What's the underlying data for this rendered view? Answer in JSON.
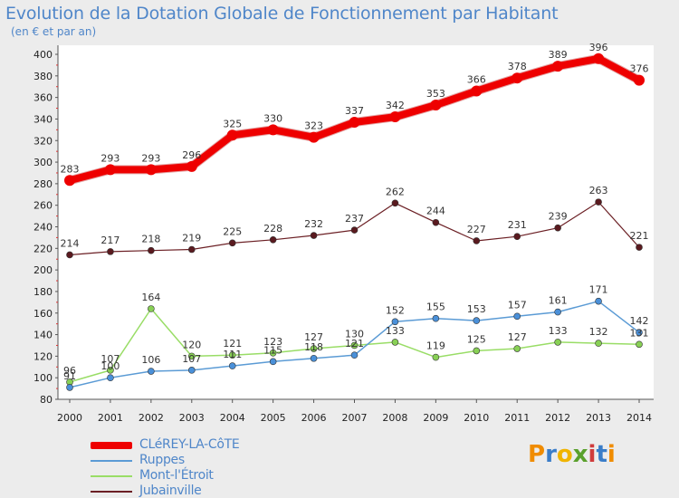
{
  "chart_data": {
    "type": "line",
    "title": "Evolution de la Dotation Globale de Fonctionnement par Habitant",
    "subtitle": "(en € et par an)",
    "x": [
      "2000",
      "2001",
      "2002",
      "2003",
      "2004",
      "2005",
      "2006",
      "2007",
      "2008",
      "2009",
      "2010",
      "2011",
      "2012",
      "2013",
      "2014"
    ],
    "yticks": [
      80,
      100,
      120,
      140,
      160,
      180,
      200,
      220,
      240,
      260,
      280,
      300,
      320,
      340,
      360,
      380,
      400
    ],
    "ylim": [
      80,
      400
    ],
    "grid": false,
    "series": [
      {
        "name": "CLéREY-LA-CôTE",
        "color": "#ee0000",
        "values": [
          283,
          293,
          293,
          296,
          325,
          330,
          323,
          337,
          342,
          353,
          366,
          378,
          389,
          396,
          376
        ]
      },
      {
        "name": "Ruppes",
        "color": "#5b9bd5",
        "values": [
          91,
          100,
          106,
          107,
          111,
          115,
          118,
          121,
          152,
          155,
          153,
          157,
          161,
          171,
          142
        ]
      },
      {
        "name": "Mont-l'Étroit",
        "color": "#99dd66",
        "values": [
          96,
          107,
          164,
          120,
          121,
          123,
          127,
          130,
          133,
          119,
          125,
          127,
          133,
          132,
          131
        ]
      },
      {
        "name": "Jubainville",
        "color": "#6b1f24",
        "values": [
          214,
          217,
          218,
          219,
          225,
          228,
          232,
          237,
          262,
          244,
          227,
          231,
          239,
          263,
          221
        ]
      }
    ]
  },
  "brand": {
    "letters": [
      "P",
      "r",
      "o",
      "x",
      "i",
      "t",
      "i"
    ],
    "colors": [
      "#f08c00",
      "#3a7dc9",
      "#f0b400",
      "#5aa02c",
      "#d03c3c",
      "#3a7dc9",
      "#f08c00"
    ]
  }
}
